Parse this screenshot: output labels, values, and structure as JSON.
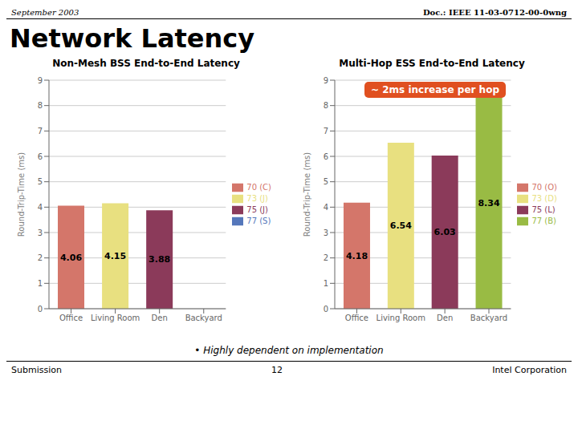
{
  "title": "Network Latency",
  "annotations": [
    "September 2003",
    "Doc.: IEEE 11-03-0712-00-0wng",
    "Submission",
    "12",
    "Intel Corporation",
    "• Highly dependent on implementation"
  ],
  "chart_data": [
    {
      "type": "bar",
      "title": "Non-Mesh BSS End-to-End Latency",
      "categories": [
        "Office",
        "Living Room",
        "Den",
        "Backyard"
      ],
      "series": [
        {
          "name": "70 (C)",
          "color": "#d4766a",
          "values": [
            4.06,
            null,
            null,
            null
          ]
        },
        {
          "name": "73 (J)",
          "color": "#e8e080",
          "values": [
            null,
            4.15,
            null,
            null
          ]
        },
        {
          "name": "75 (J)",
          "color": "#8B3a5a",
          "values": [
            null,
            null,
            3.88,
            null
          ]
        },
        {
          "name": "77 (S)",
          "color": "#5577bb",
          "values": [
            null,
            null,
            null,
            null
          ]
        }
      ],
      "stacked": true,
      "ylabel": "Round-Trip-Time (ms)",
      "ylim": [
        0,
        9
      ],
      "yticks": [
        0,
        1,
        2,
        3,
        4,
        5,
        6,
        7,
        8,
        9
      ],
      "grid": true,
      "legend": "right",
      "data_labels": true
    },
    {
      "type": "bar",
      "title": "Multi-Hop ESS End-to-End Latency",
      "categories": [
        "Office",
        "Living Room",
        "Den",
        "Backyard"
      ],
      "series": [
        {
          "name": "70 (O)",
          "color": "#d4766a",
          "values": [
            4.18,
            null,
            null,
            null
          ]
        },
        {
          "name": "73 (D)",
          "color": "#e8e080",
          "values": [
            null,
            6.54,
            null,
            null
          ]
        },
        {
          "name": "75 (L)",
          "color": "#8B3a5a",
          "values": [
            null,
            null,
            6.03,
            null
          ]
        },
        {
          "name": "77 (B)",
          "color": "#99bb44",
          "values": [
            null,
            null,
            null,
            8.34
          ]
        }
      ],
      "stacked": true,
      "ylabel": "Round-Trip-Time (ms)",
      "ylim": [
        0,
        9
      ],
      "yticks": [
        0,
        1,
        2,
        3,
        4,
        5,
        6,
        7,
        8,
        9
      ],
      "grid": true,
      "legend": "right",
      "data_labels": true,
      "annotations": [
        {
          "text": "~ 2ms increase per hop",
          "color": "#e05020"
        }
      ]
    }
  ]
}
